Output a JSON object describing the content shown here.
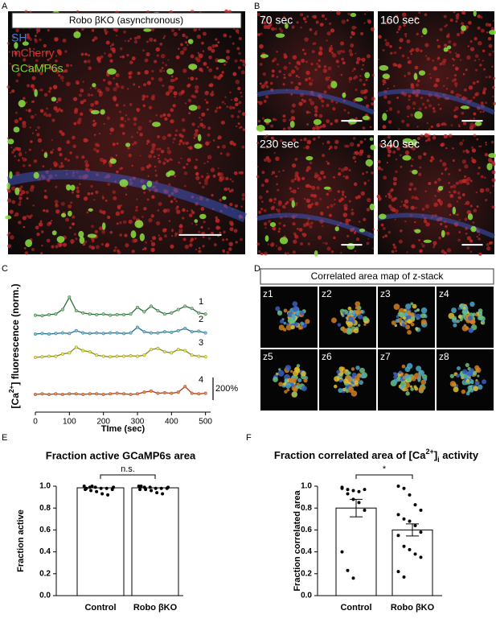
{
  "panel_labels": [
    "A",
    "B",
    "C",
    "D",
    "E",
    "F"
  ],
  "panel_a": {
    "header": "Robo βKO (asynchronous)",
    "legend": [
      {
        "text": "SH",
        "color": "#4a78d8"
      },
      {
        "text": "mCherry",
        "color": "#e03030"
      },
      {
        "text": "GCaMP6s",
        "color": "#7ad040"
      }
    ]
  },
  "panel_b": {
    "frames": [
      "70 sec",
      "160 sec",
      "230 sec",
      "340 sec"
    ]
  },
  "panel_d": {
    "header": "Correlated area map of z-stack",
    "frames": [
      "z1",
      "z2",
      "z3",
      "z4",
      "z5",
      "z6",
      "z7",
      "z8"
    ]
  },
  "chart_data": [
    {
      "type": "line",
      "ylabel": [
        "[Ca",
        "2+",
        "] fluorescence (norm.)"
      ],
      "xlabel": "TIme (sec)",
      "x": [
        0,
        20,
        40,
        60,
        80,
        100,
        120,
        140,
        160,
        180,
        200,
        220,
        240,
        260,
        280,
        300,
        320,
        340,
        360,
        380,
        400,
        420,
        440,
        460,
        480,
        500
      ],
      "xlim": [
        0,
        515
      ],
      "xticks": [
        0,
        100,
        200,
        300,
        400,
        500
      ],
      "scale_bar": {
        "value": 200,
        "label": "200%"
      },
      "series": [
        {
          "name": "1",
          "color": "#2e6b3a",
          "marker_color": "#8fd08f",
          "values": [
            10,
            5,
            15,
            20,
            60,
            170,
            50,
            30,
            20,
            15,
            20,
            10,
            15,
            15,
            20,
            80,
            40,
            90,
            50,
            20,
            30,
            60,
            90,
            70,
            30,
            20
          ]
        },
        {
          "name": "2",
          "color": "#2c6e8a",
          "marker_color": "#7ec3d9",
          "values": [
            0,
            5,
            0,
            5,
            10,
            5,
            30,
            10,
            5,
            10,
            5,
            10,
            10,
            5,
            10,
            60,
            20,
            10,
            10,
            20,
            15,
            30,
            50,
            20,
            25,
            10
          ]
        },
        {
          "name": "3",
          "color": "#8a8a20",
          "marker_color": "#e8e850",
          "values": [
            0,
            5,
            10,
            10,
            30,
            40,
            90,
            60,
            50,
            20,
            10,
            5,
            10,
            10,
            15,
            10,
            20,
            70,
            80,
            50,
            40,
            70,
            60,
            20,
            10,
            5
          ]
        },
        {
          "name": "4",
          "color": "#a04020",
          "marker_color": "#e8904a",
          "values": [
            0,
            5,
            0,
            5,
            0,
            5,
            5,
            0,
            5,
            5,
            0,
            5,
            10,
            5,
            0,
            5,
            20,
            30,
            10,
            15,
            10,
            20,
            70,
            10,
            5,
            10
          ]
        }
      ]
    },
    {
      "type": "bar",
      "title": "Fraction active GCaMP6s area",
      "ylabel": "Fraction active",
      "categories": [
        "Control",
        "Robo βKO"
      ],
      "values": [
        0.985,
        0.985
      ],
      "points": [
        [
          1.0,
          0.99,
          0.99,
          0.98,
          0.98,
          0.97,
          0.97,
          0.96,
          0.95,
          0.93,
          0.92,
          0.99,
          0.98,
          1.0
        ],
        [
          1.0,
          0.99,
          0.99,
          0.98,
          0.98,
          0.98,
          0.97,
          0.97,
          0.96,
          0.94,
          0.93,
          0.99,
          1.0
        ]
      ],
      "ylim": [
        0,
        1.0
      ],
      "yticks": [
        {
          "value": 0,
          "label": "0.0"
        },
        0.2,
        0.4,
        0.6,
        0.8,
        {
          "value": 1,
          "label": "1.0"
        }
      ],
      "annotation": "n.s."
    },
    {
      "type": "bar",
      "title": [
        "Fraction correlated area of [Ca",
        "2+",
        "]",
        "i",
        " activity"
      ],
      "ylabel": "Fraction correlated area",
      "categories": [
        "Control",
        "Robo βKO"
      ],
      "values": [
        0.8,
        0.6
      ],
      "errors": [
        0.08,
        0.055
      ],
      "points": [
        [
          0.98,
          0.97,
          0.96,
          0.95,
          0.97,
          0.99,
          0.93,
          0.88,
          0.85,
          0.78,
          0.4,
          0.23,
          0.16
        ],
        [
          1.0,
          0.98,
          0.92,
          0.83,
          0.78,
          0.74,
          0.7,
          0.68,
          0.64,
          0.58,
          0.55,
          0.45,
          0.42,
          0.38,
          0.35,
          0.22,
          0.17
        ]
      ],
      "ylim": [
        0,
        1.0
      ],
      "yticks": [
        {
          "value": 0,
          "label": "0.0"
        },
        0.2,
        0.4,
        0.6,
        0.8,
        {
          "value": 1,
          "label": "1.0"
        }
      ],
      "annotation": "*"
    }
  ]
}
